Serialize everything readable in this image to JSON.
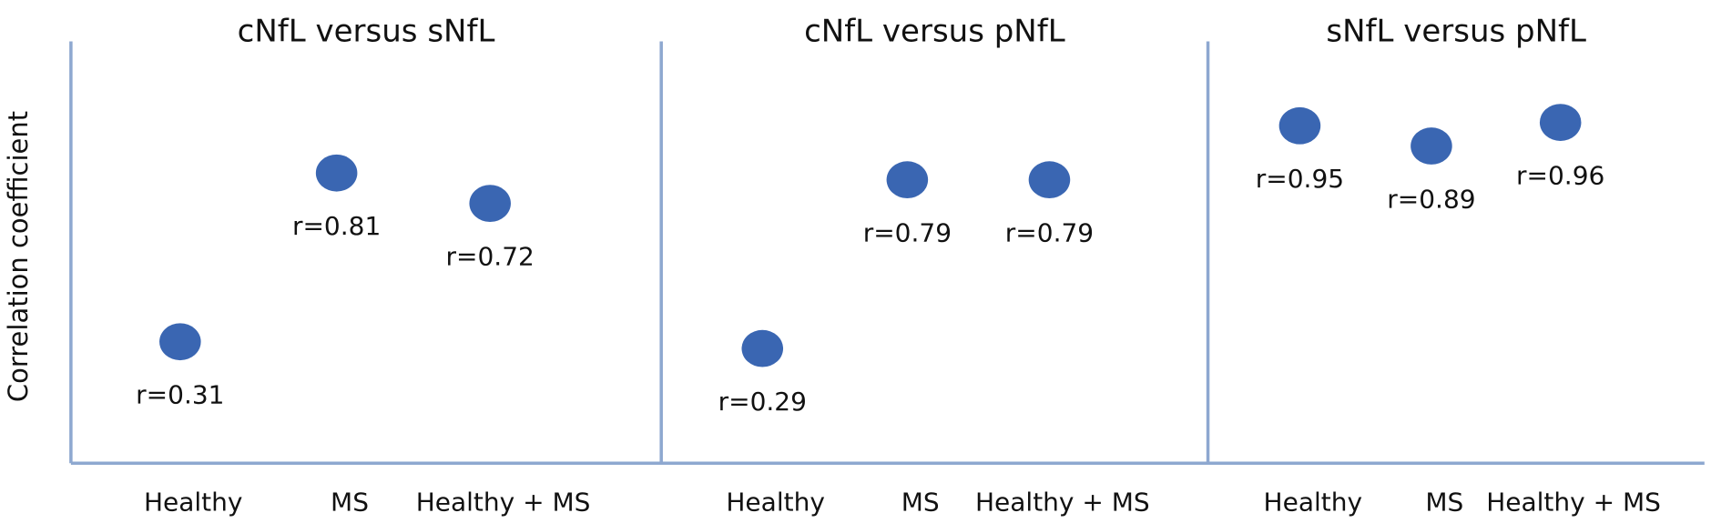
{
  "chart_data": [
    {
      "type": "dot",
      "title": "cNfL versus sNfL",
      "y_label": "Correlation coefficient",
      "categories": [
        "Healthy",
        "MS",
        "Healthy + MS"
      ],
      "values": [
        0.31,
        0.81,
        0.72
      ],
      "value_labels": [
        "r=0.31",
        "r=0.81",
        "r=0.72"
      ],
      "color": "#3a66b2",
      "ylim": [
        -0.05,
        1.2
      ]
    },
    {
      "type": "dot",
      "title": "cNfL versus pNfL",
      "categories": [
        "Healthy",
        "MS",
        "Healthy + MS"
      ],
      "values": [
        0.29,
        0.79,
        0.79
      ],
      "value_labels": [
        "r=0.29",
        "r=0.79",
        "r=0.79"
      ],
      "color": "#3a66b2",
      "ylim": [
        -0.05,
        1.2
      ]
    },
    {
      "type": "dot",
      "title": "sNfL versus pNfL",
      "categories": [
        "Healthy",
        "MS",
        "Healthy + MS"
      ],
      "values": [
        0.95,
        0.89,
        0.96
      ],
      "value_labels": [
        "r=0.95",
        "r=0.89",
        "r=0.96"
      ],
      "color": "#3a66b2",
      "ylim": [
        -0.05,
        1.2
      ]
    }
  ]
}
